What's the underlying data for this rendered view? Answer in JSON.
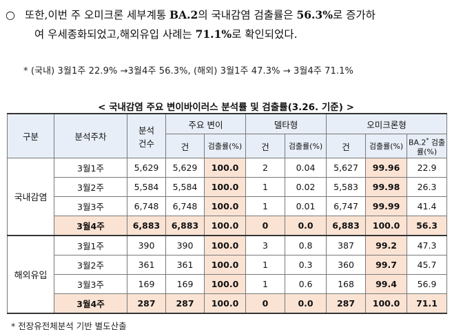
{
  "paragraph": {
    "bullet": "○",
    "line1_a": "또한,이번 주 오미크론 세부계통 ",
    "line1_b": "BA.2",
    "line1_c": "의 국내감염 검출률은 ",
    "line1_d": "56.3%",
    "line1_e": "로 증가하",
    "line2_a": "여 우세종화되었고,해외유입 사례는 ",
    "line2_b": "71.1%",
    "line2_c": "로 확인되었다."
  },
  "note": "* (국내) 3월1주 22.9% →3월4주 56.3%, (해외) 3월1주 47.3% → 3월4주 71.1%",
  "caption": "< 국내감염 주요 변이바이러스 분석률 및 검출률(3.26. 기준) >",
  "table": {
    "headers": {
      "division": "구분",
      "week": "분석주차",
      "analyzed": "분석\n건수",
      "major": "주요 변이",
      "delta": "델타형",
      "omicron": "오미크론형",
      "count": "건",
      "rate": "검출률(%)",
      "ba2_label": "BA.2",
      "ba2_sup": "*",
      "ba2_rate": "검출률(%)"
    },
    "groups": [
      {
        "name": "국내감염",
        "rows": [
          {
            "week": "3월1주",
            "analyzed": "5,629",
            "major_n": "5,629",
            "major_r": "100.0",
            "delta_n": "2",
            "delta_r": "0.04",
            "omi_n": "5,627",
            "omi_r": "99.96",
            "ba2": "22.9"
          },
          {
            "week": "3월2주",
            "analyzed": "5,584",
            "major_n": "5,584",
            "major_r": "100.0",
            "delta_n": "1",
            "delta_r": "0.02",
            "omi_n": "5,583",
            "omi_r": "99.98",
            "ba2": "26.3"
          },
          {
            "week": "3월3주",
            "analyzed": "6,748",
            "major_n": "6,748",
            "major_r": "100.0",
            "delta_n": "1",
            "delta_r": "0.01",
            "omi_n": "6,747",
            "omi_r": "99.99",
            "ba2": "41.4"
          },
          {
            "week": "3월4주",
            "analyzed": "6,883",
            "major_n": "6,883",
            "major_r": "100.0",
            "delta_n": "0",
            "delta_r": "0.0",
            "omi_n": "6,883",
            "omi_r": "100.0",
            "ba2": "56.3"
          }
        ]
      },
      {
        "name": "해외유입",
        "rows": [
          {
            "week": "3월1주",
            "analyzed": "390",
            "major_n": "390",
            "major_r": "100.0",
            "delta_n": "3",
            "delta_r": "0.8",
            "omi_n": "387",
            "omi_r": "99.2",
            "ba2": "47.3"
          },
          {
            "week": "3월2주",
            "analyzed": "361",
            "major_n": "361",
            "major_r": "100.0",
            "delta_n": "1",
            "delta_r": "0.3",
            "omi_n": "360",
            "omi_r": "99.7",
            "ba2": "45.7"
          },
          {
            "week": "3월3주",
            "analyzed": "169",
            "major_n": "169",
            "major_r": "100.0",
            "delta_n": "1",
            "delta_r": "0.6",
            "omi_n": "168",
            "omi_r": "99.4",
            "ba2": "56.9"
          },
          {
            "week": "3월4주",
            "analyzed": "287",
            "major_n": "287",
            "major_r": "100.0",
            "delta_n": "0",
            "delta_r": "0.0",
            "omi_n": "287",
            "omi_r": "100.0",
            "ba2": "71.1"
          }
        ]
      }
    ]
  },
  "footnote": "* 전장유전체분석 기반 별도산출",
  "colors": {
    "header_bg": "#e8eef7",
    "highlight_bg": "#fbe3d4"
  }
}
